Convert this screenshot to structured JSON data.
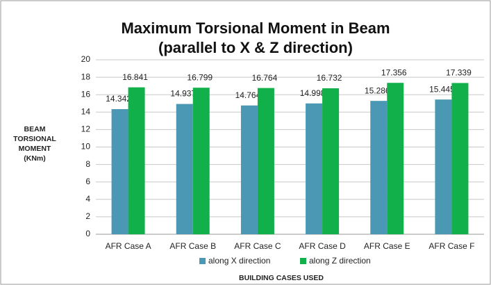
{
  "chart_data": {
    "type": "bar",
    "title": [
      "Maximum Torsional Moment in Beam",
      "(parallel to X & Z direction)"
    ],
    "y_label": [
      "BEAM",
      "TORSIONAL",
      "MOMENT",
      "(KNm)"
    ],
    "x_label": "BUILDING CASES USED",
    "categories": [
      "AFR Case A",
      "AFR Case B",
      "AFR Case C",
      "AFR Case D",
      "AFR Case E",
      "AFR Case F"
    ],
    "series": [
      {
        "name": "along X direction",
        "color": "#4a98b4",
        "values": [
          14.342,
          14.937,
          14.764,
          14.998,
          15.286,
          15.445
        ]
      },
      {
        "name": "along Z direction",
        "color": "#12b04b",
        "values": [
          16.841,
          16.799,
          16.764,
          16.732,
          17.356,
          17.339
        ]
      }
    ],
    "ylim": [
      0,
      20
    ],
    "yticks": [
      0,
      2,
      4,
      6,
      8,
      10,
      12,
      14,
      16,
      18,
      20
    ],
    "grid": true,
    "legend": "bottom"
  }
}
